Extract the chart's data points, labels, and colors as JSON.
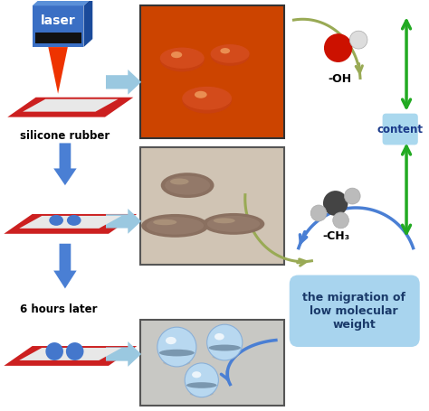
{
  "bg_color": "#ffffff",
  "laser_box_color": "#3a6fc4",
  "laser_box_top": "#5a90d8",
  "laser_box_right": "#1a4a9a",
  "laser_beam_color": "#ee3300",
  "plate_red": "#cc2020",
  "plate_light": "#e8e8e8",
  "plate_border": "#cc2020",
  "arrow_blue": "#4a7fd4",
  "arrow_light_blue": "#9ac8e0",
  "arrow_green": "#22aa22",
  "arrow_olive": "#99aa55",
  "drop_blue": "#4477cc",
  "content_box_color": "#aad8ee",
  "migration_box_color": "#a8d4ee",
  "img1_bg": "#cc4400",
  "img1_border": "#333333",
  "img2_bg": "#d0c4b4",
  "img2_border": "#555555",
  "img3_bg": "#c8c8c4",
  "img3_border": "#555555",
  "text_silicone": "silicone rubber",
  "text_6hours": "6 hours later",
  "text_laser": "laser",
  "text_OH": "-OH",
  "text_CH3": "-CH₃",
  "text_content": "content",
  "text_migration": "the migration of\nlow molecular\nweight",
  "oh_red": "#cc1100",
  "oh_white": "#dddddd",
  "ch3_dark": "#444444",
  "ch3_gray": "#bbbbbb",
  "green_arrow": "#22aa22"
}
